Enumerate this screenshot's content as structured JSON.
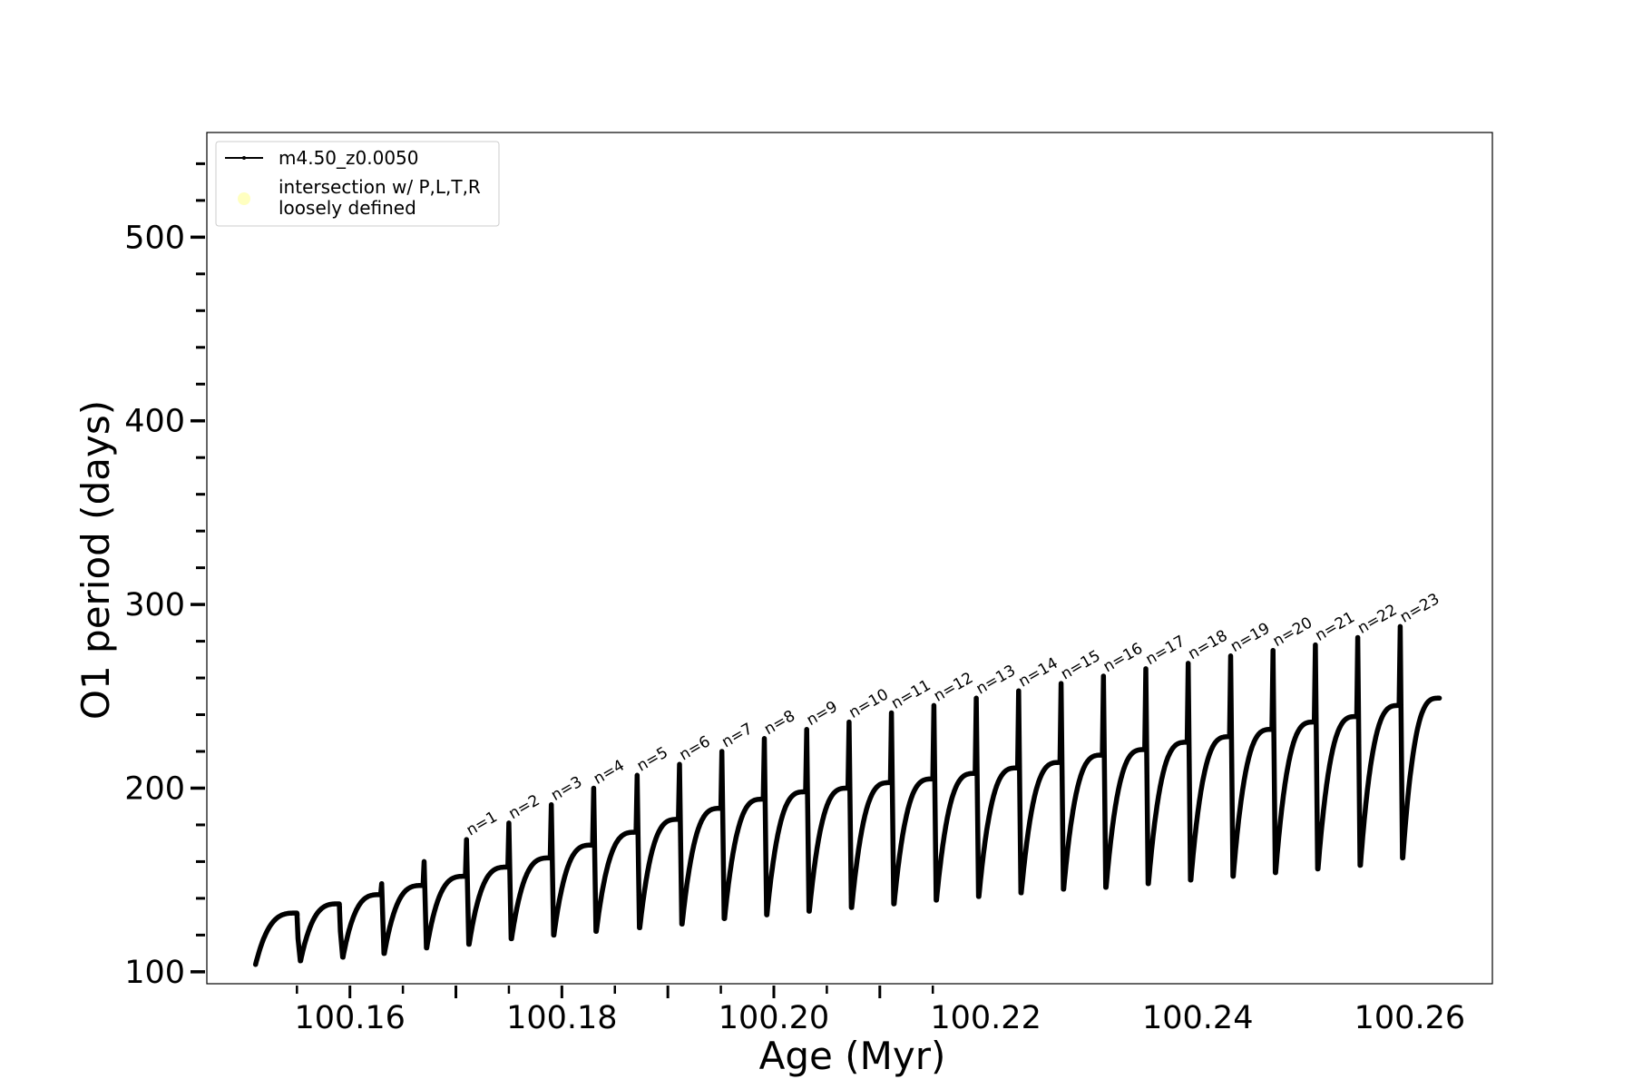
{
  "chart_data": {
    "type": "line",
    "xlabel": "Age (Myr)",
    "ylabel": "O1 period (days)",
    "xlim": [
      100.1465,
      100.2678
    ],
    "ylim": [
      93.5,
      557
    ],
    "x_ticks": [
      100.16,
      100.18,
      100.2,
      100.22,
      100.24,
      100.26
    ],
    "x_tick_labels": [
      "100.16",
      "100.18",
      "100.20",
      "100.22",
      "100.24",
      "100.26"
    ],
    "y_ticks": [
      100,
      200,
      300,
      400,
      500
    ],
    "y_tick_labels": [
      "100",
      "200",
      "300",
      "400",
      "500"
    ],
    "grid": false,
    "legend_position": "top-left",
    "legend": [
      {
        "label": "m4.50_z0.0050",
        "marker": "line-dot",
        "color": "#000000"
      },
      {
        "label_lines": [
          "intersection w/ P,L,T,R",
          "loosely defined"
        ],
        "marker": "circle",
        "color": "#ffffc0"
      }
    ],
    "series": [
      {
        "name": "m4.50_z0.0050",
        "color": "#000000",
        "start": {
          "x": 100.1511,
          "y": 104
        },
        "pulses": [
          {
            "x": 100.1551,
            "peak": 132,
            "spike": 118,
            "trough": 106,
            "label": ""
          },
          {
            "x": 100.1591,
            "peak": 137,
            "spike": 122,
            "trough": 108,
            "label": ""
          },
          {
            "x": 100.163,
            "peak": 142,
            "spike": 148,
            "trough": 110,
            "label": ""
          },
          {
            "x": 100.167,
            "peak": 147,
            "spike": 160,
            "trough": 113,
            "label": ""
          },
          {
            "x": 100.171,
            "peak": 152,
            "spike": 172,
            "trough": 115,
            "label": "n=1"
          },
          {
            "x": 100.175,
            "peak": 157,
            "spike": 181,
            "trough": 118,
            "label": "n=2"
          },
          {
            "x": 100.179,
            "peak": 162,
            "spike": 191,
            "trough": 120,
            "label": "n=3"
          },
          {
            "x": 100.183,
            "peak": 169,
            "spike": 200,
            "trough": 122,
            "label": "n=4"
          },
          {
            "x": 100.1871,
            "peak": 176,
            "spike": 207,
            "trough": 124,
            "label": "n=5"
          },
          {
            "x": 100.1911,
            "peak": 183,
            "spike": 213,
            "trough": 126,
            "label": "n=6"
          },
          {
            "x": 100.1951,
            "peak": 189,
            "spike": 220,
            "trough": 129,
            "label": "n=7"
          },
          {
            "x": 100.1991,
            "peak": 194,
            "spike": 227,
            "trough": 131,
            "label": "n=8"
          },
          {
            "x": 100.2031,
            "peak": 198,
            "spike": 232,
            "trough": 133,
            "label": "n=9"
          },
          {
            "x": 100.2071,
            "peak": 200,
            "spike": 236,
            "trough": 135,
            "label": "n=10"
          },
          {
            "x": 100.2111,
            "peak": 203,
            "spike": 241,
            "trough": 137,
            "label": "n=11"
          },
          {
            "x": 100.2151,
            "peak": 205,
            "spike": 245,
            "trough": 139,
            "label": "n=12"
          },
          {
            "x": 100.2191,
            "peak": 208,
            "spike": 249,
            "trough": 141,
            "label": "n=13"
          },
          {
            "x": 100.2231,
            "peak": 211,
            "spike": 253,
            "trough": 143,
            "label": "n=14"
          },
          {
            "x": 100.2271,
            "peak": 214,
            "spike": 257,
            "trough": 145,
            "label": "n=15"
          },
          {
            "x": 100.2311,
            "peak": 218,
            "spike": 261,
            "trough": 146,
            "label": "n=16"
          },
          {
            "x": 100.2351,
            "peak": 221,
            "spike": 265,
            "trough": 148,
            "label": "n=17"
          },
          {
            "x": 100.2391,
            "peak": 225,
            "spike": 268,
            "trough": 150,
            "label": "n=18"
          },
          {
            "x": 100.2431,
            "peak": 228,
            "spike": 272,
            "trough": 152,
            "label": "n=19"
          },
          {
            "x": 100.2471,
            "peak": 232,
            "spike": 275,
            "trough": 154,
            "label": "n=20"
          },
          {
            "x": 100.2511,
            "peak": 236,
            "spike": 278,
            "trough": 156,
            "label": "n=21"
          },
          {
            "x": 100.2551,
            "peak": 239,
            "spike": 282,
            "trough": 158,
            "label": "n=22"
          },
          {
            "x": 100.2591,
            "peak": 245,
            "spike": 288,
            "trough": 162,
            "label": "n=23"
          }
        ],
        "end": {
          "x": 100.2628,
          "y": 249
        }
      }
    ]
  }
}
